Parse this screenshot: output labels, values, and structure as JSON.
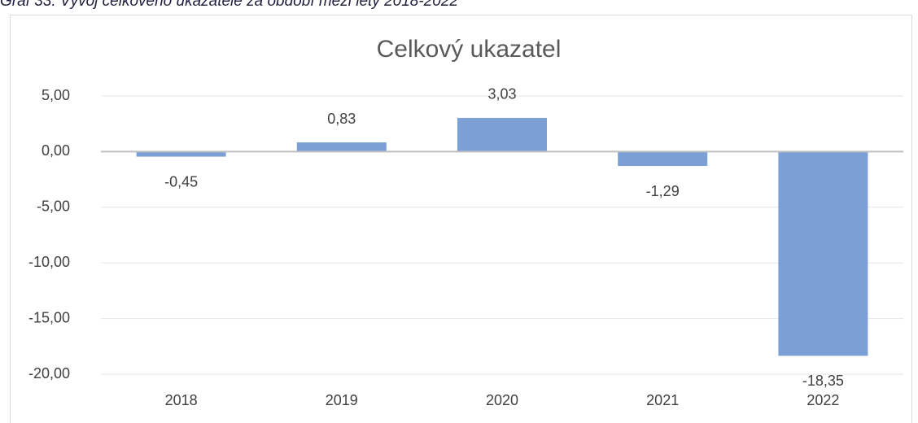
{
  "chart_data": {
    "type": "bar",
    "caption": "Graf 33: Vývoj celkového ukazatele za období mezi lety 2018-2022",
    "title": "Celkový ukazatel",
    "categories": [
      "2018",
      "2019",
      "2020",
      "2021",
      "2022"
    ],
    "values": [
      -0.45,
      0.83,
      3.03,
      -1.29,
      -18.35
    ],
    "value_labels": [
      "-0,45",
      "0,83",
      "3,03",
      "-1,29",
      "-18,35"
    ],
    "color": "#7c9fd6",
    "ylim": [
      -20,
      5
    ],
    "yticks": [
      {
        "value": 5,
        "label": "5,00"
      },
      {
        "value": 0,
        "label": "0,00"
      },
      {
        "value": -5,
        "label": "-5,00"
      },
      {
        "value": -10,
        "label": "-10,00"
      },
      {
        "value": -15,
        "label": "-15,00"
      },
      {
        "value": -20,
        "label": "-20,00"
      }
    ],
    "grid": true
  }
}
